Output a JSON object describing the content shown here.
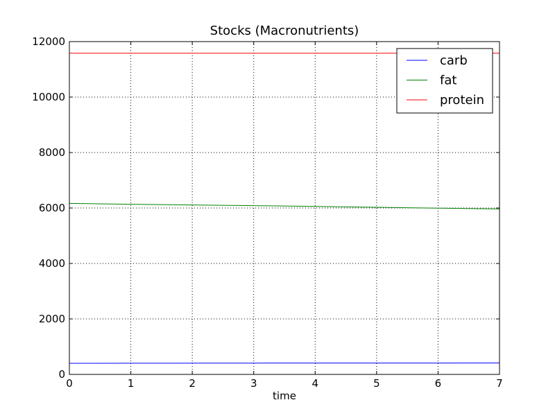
{
  "chart_data": {
    "type": "line",
    "title": "Stocks (Macronutrients)",
    "xlabel": "time",
    "ylabel": "",
    "xlim": [
      0,
      7
    ],
    "ylim": [
      0,
      12000
    ],
    "xticks": [
      0,
      1,
      2,
      3,
      4,
      5,
      6,
      7
    ],
    "yticks": [
      0,
      2000,
      4000,
      6000,
      8000,
      10000,
      12000
    ],
    "grid": true,
    "legend_position": "top-right",
    "series": [
      {
        "name": "carb",
        "color": "#0000ff",
        "x": [
          0,
          1,
          2,
          3,
          4,
          5,
          6,
          7
        ],
        "y": [
          400,
          403,
          405,
          407,
          409,
          410,
          411,
          412
        ]
      },
      {
        "name": "fat",
        "color": "#008000",
        "x": [
          0,
          1,
          2,
          3,
          4,
          5,
          6,
          7
        ],
        "y": [
          6165,
          6135,
          6110,
          6085,
          6055,
          6025,
          5995,
          5965
        ]
      },
      {
        "name": "protein",
        "color": "#ff0000",
        "x": [
          0,
          1,
          2,
          3,
          4,
          5,
          6,
          7
        ],
        "y": [
          11580,
          11580,
          11580,
          11580,
          11580,
          11580,
          11580,
          11580
        ]
      }
    ]
  }
}
